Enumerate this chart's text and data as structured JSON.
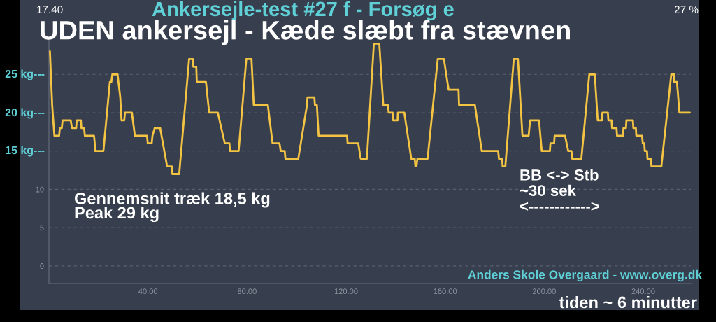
{
  "chart_data": {
    "type": "line",
    "title": "Ankersejle-test #27 f - Forsøg e",
    "subtitle": "UDEN ankersejl - Kæde slæbt fra stævnen",
    "xlabel": "tiden ~ 6 minutter",
    "annotations": [
      "Gennemsnit træk 18,5 kg",
      "Peak 29 kg",
      "BB <-> Stb\n~30 sek\n<------------>",
      "Anders Skole Overgaard - www.overg.dk",
      "17.40",
      "27 %",
      "25 kg---",
      "20 kg---",
      "15 kg---"
    ],
    "series": [
      {
        "color": "#f3c343",
        "x": [
          0.4,
          1.3,
          2.2,
          4.1,
          4.4,
          5.2,
          5.5,
          8.8,
          9.3,
          11,
          11.2,
          12.9,
          13.1,
          14.2,
          14.5,
          18.2,
          18.5,
          18.7,
          22,
          24.6,
          25.2,
          25.6,
          27.7,
          28.8,
          29.3,
          30.4,
          30.7,
          33.5,
          34.7,
          39.6,
          39.9,
          41.5,
          41.8,
          42.7,
          44.9,
          47.7,
          49.6,
          49.8,
          52.6,
          56.6,
          58.1,
          58.3,
          59.5,
          59.7,
          63.4,
          64.7,
          68.2,
          71,
          72.9,
          73.1,
          76.6,
          79.7,
          81.8,
          82.7,
          88.4,
          90.3,
          93.1,
          93.6,
          95.2,
          95.5,
          100.7,
          104.2,
          104.4,
          107.2,
          107.4,
          108.2,
          108.9,
          120.4,
          120.6,
          124.9,
          125.9,
          128.4,
          131.2,
          133.4,
          135,
          136.9,
          137.2,
          138.8,
          139,
          140.8,
          140.9,
          143.5,
          146.3,
          147.7,
          148,
          148.4,
          148.8,
          152.9,
          157,
          159.5,
          160.9,
          161.4,
          165.4,
          165.6,
          172,
          174.8,
          181.4,
          181.7,
          183,
          183.2,
          184.3,
          187.7,
          189.4,
          191.2,
          193.7,
          194.3,
          197.9,
          199,
          202.3,
          202.5,
          204,
          204.2,
          208.4,
          209.7,
          211,
          211.3,
          215,
          218.2,
          220.4,
          221.6,
          223.3,
          223.5,
          225.7,
          225.9,
          227.2,
          227.4,
          229.2,
          229.4,
          231.8,
          232,
          233,
          233.2,
          235.8,
          236,
          237,
          237.2,
          239.5,
          239.8,
          240.4,
          240.6,
          241.5,
          241.7,
          243.1,
          243.3,
          247.3,
          250.3,
          251.3,
          252.4,
          252.5,
          253.6,
          254.6,
          258.8
        ],
        "values": [
          28,
          21,
          17,
          17,
          18,
          18,
          19,
          19,
          18,
          18,
          19,
          19,
          18,
          18,
          17,
          17,
          16,
          15,
          15,
          24,
          24,
          25,
          25,
          22,
          19,
          19,
          20,
          20,
          17,
          17,
          16,
          16,
          17,
          18,
          18,
          13,
          13,
          12,
          12,
          27,
          27,
          26,
          26,
          24,
          24,
          20,
          20,
          16,
          16,
          15,
          15,
          27,
          27,
          21,
          21,
          16,
          16,
          15,
          15,
          14,
          14,
          21,
          22,
          22,
          21,
          21,
          17,
          17,
          16,
          16,
          14,
          14,
          29,
          29,
          21,
          21,
          20,
          20,
          19,
          19,
          20,
          20,
          14,
          14,
          13,
          13,
          14,
          14,
          27,
          27,
          24,
          23,
          23,
          21,
          21,
          15,
          15,
          14,
          14,
          13,
          13,
          27,
          27,
          17,
          17,
          19,
          19,
          15,
          15,
          16,
          16,
          17,
          17,
          15,
          15,
          14,
          14,
          25,
          25,
          19,
          19,
          20,
          20,
          19,
          19,
          18,
          18,
          17,
          17,
          18,
          18,
          19,
          19,
          18,
          18,
          17,
          17,
          16,
          16,
          15,
          15,
          14,
          14,
          13,
          13,
          22,
          25,
          25,
          24,
          24,
          20,
          20
        ]
      }
    ],
    "xlim": [
      0,
      259.2
    ],
    "ylim": [
      -2.3,
      29.5
    ],
    "xticks": [
      {
        "value": 40,
        "label": "40.00"
      },
      {
        "value": 80,
        "label": "80.00"
      },
      {
        "value": 120,
        "label": "120.00"
      },
      {
        "value": 160,
        "label": "160.00"
      },
      {
        "value": 200,
        "label": "200.00"
      },
      {
        "value": 240,
        "label": "240.00"
      }
    ],
    "yticks": [
      0,
      5,
      10,
      {
        "value": 15,
        "label": null
      },
      {
        "value": 20,
        "label": null
      },
      {
        "value": 25,
        "label": null
      }
    ],
    "grid": "y",
    "line_style": "solid"
  }
}
